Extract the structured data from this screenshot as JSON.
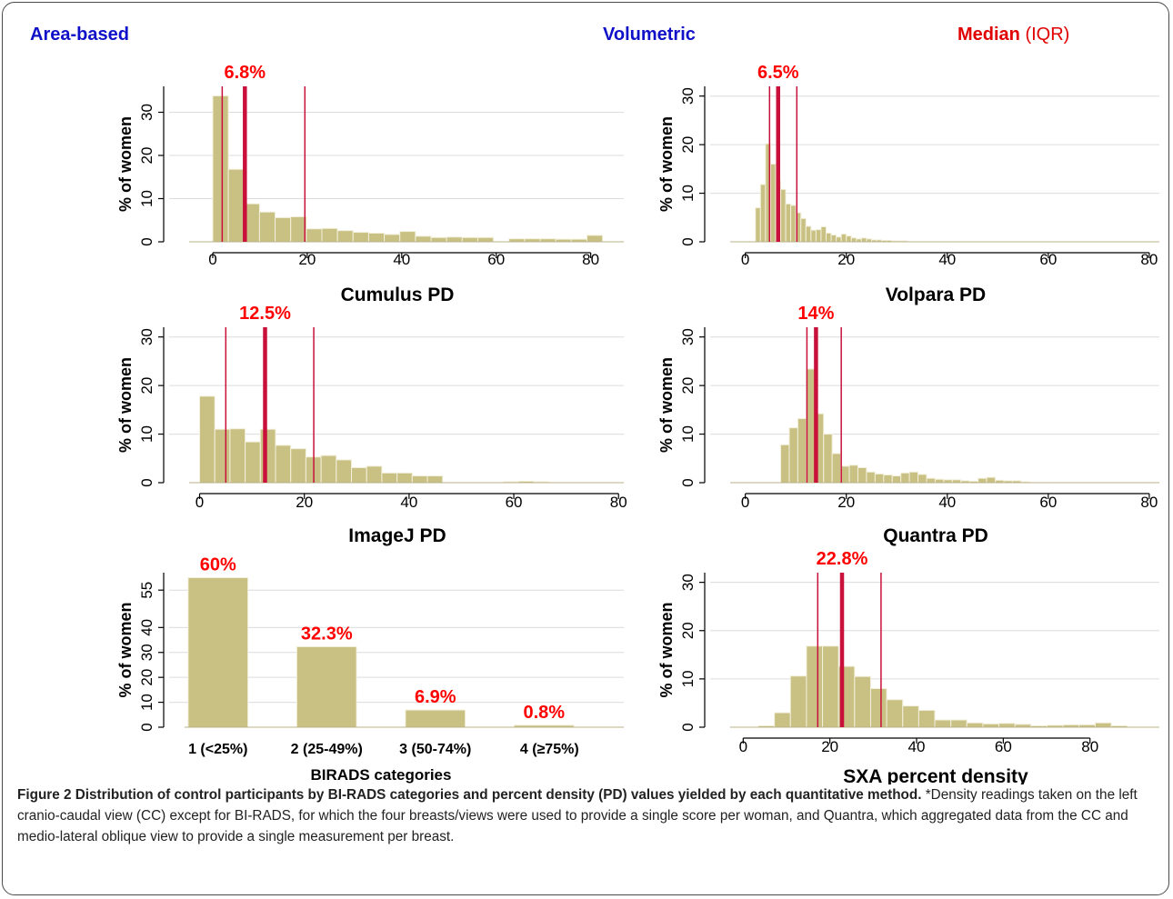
{
  "headers": {
    "area_based": "Area-based",
    "volumetric": "Volumetric",
    "median": "Median",
    "iqr": "(IQR)"
  },
  "colors": {
    "bar_fill": "#c9c184",
    "bar_stroke": "#f3f0dc",
    "median_line": "#c8103a",
    "label_red": "#ff0000",
    "area_header": "#1010c8"
  },
  "caption": {
    "title": "Figure 2 Distribution of control participants by BI-RADS categories and percent density (PD) values yielded by each quantitative method.",
    "body": " *Density readings taken on the left cranio-caudal view (CC) except for BI-RADS, for which the four breasts/views were used to provide a single score per woman, and Quantra, which aggregated data from the CC and medio-lateral oblique view to provide a single measurement per breast."
  },
  "chart_data": [
    {
      "id": "cumulus",
      "type": "bar",
      "subtype": "histogram",
      "xlabel": "Cumulus PD",
      "ylabel": "% of women",
      "xlim": [
        -5,
        87
      ],
      "ylim": [
        0,
        36
      ],
      "xticks": [
        0,
        20,
        40,
        60,
        80
      ],
      "yticks": [
        0,
        10,
        20,
        30
      ],
      "bin_width": 3.3,
      "bin_start": 0,
      "values": [
        33.8,
        16.8,
        8.8,
        6.9,
        5.6,
        5.8,
        3.0,
        3.1,
        2.6,
        2.2,
        2.0,
        1.7,
        2.4,
        1.3,
        1.0,
        1.1,
        1.0,
        1.0,
        0,
        0.7,
        0.7,
        0.7,
        0.6,
        0.6,
        1.5,
        0
      ],
      "median": 6.8,
      "iqr": [
        2.0,
        19.5
      ],
      "median_label": "6.8%"
    },
    {
      "id": "volpara",
      "type": "bar",
      "subtype": "histogram",
      "xlabel": "Volpara PD",
      "ylabel": "% of women",
      "xlim": [
        -3,
        82
      ],
      "ylim": [
        0,
        32
      ],
      "xticks": [
        0,
        20,
        40,
        60,
        80
      ],
      "yticks": [
        0,
        10,
        20,
        30
      ],
      "bin_width": 1,
      "bin_start": 2,
      "values": [
        7.0,
        11.8,
        20.2,
        16.0,
        12.5,
        10.8,
        7.8,
        7.5,
        6.0,
        4.8,
        3.2,
        2.4,
        2.5,
        3.1,
        1.8,
        1.4,
        1.0,
        1.6,
        1.2,
        0.8,
        0.6,
        0.8,
        0.6,
        0.4,
        0.4,
        0.3,
        0.3,
        0.2,
        0.2,
        0.2
      ],
      "median": 6.5,
      "iqr": [
        4.8,
        10.2
      ],
      "median_label": "6.5%"
    },
    {
      "id": "imagej",
      "type": "bar",
      "subtype": "histogram",
      "xlabel": "ImageJ PD",
      "ylabel": "% of women",
      "xlim": [
        -2,
        81
      ],
      "ylim": [
        0,
        32
      ],
      "xticks": [
        0,
        20,
        40,
        60,
        80
      ],
      "yticks": [
        0,
        10,
        20,
        30
      ],
      "bin_width": 2.9,
      "bin_start": 0,
      "values": [
        17.8,
        11.0,
        11.1,
        8.4,
        11.0,
        7.7,
        7.0,
        5.3,
        5.6,
        4.7,
        3.1,
        3.4,
        2.0,
        2.0,
        1.4,
        1.4,
        0,
        0,
        0,
        0,
        0.2,
        0.3,
        0.2
      ],
      "median": 12.5,
      "iqr": [
        5.0,
        21.8
      ],
      "median_label": "12.5%"
    },
    {
      "id": "quantra",
      "type": "bar",
      "subtype": "histogram",
      "xlabel": "Quantra PD",
      "ylabel": "% of women",
      "xlim": [
        -3,
        82
      ],
      "ylim": [
        0,
        32
      ],
      "xticks": [
        0,
        20,
        40,
        60,
        80
      ],
      "yticks": [
        0,
        10,
        20,
        30
      ],
      "bin_width": 1.7,
      "bin_start": 7,
      "values": [
        7.8,
        11.3,
        13.2,
        23.4,
        14.2,
        10.0,
        6.0,
        3.4,
        3.6,
        3.1,
        2.2,
        1.8,
        1.6,
        1.4,
        2.0,
        2.2,
        1.7,
        0.9,
        0.7,
        0.6,
        0.6,
        0.4,
        0.3,
        0.9,
        1.1,
        0.5,
        0.4,
        0.4,
        0.2
      ],
      "median": 14,
      "iqr": [
        12.2,
        19.0
      ],
      "median_label": "14%"
    },
    {
      "id": "birads",
      "type": "bar",
      "categories": [
        "1  (<25%)",
        "2 (25-49%)",
        "3 (50-74%)",
        "4 (≥75%)"
      ],
      "values": [
        60,
        32.3,
        6.9,
        0.8
      ],
      "data_labels": [
        "60%",
        "32.3%",
        "6.9%",
        "0.8%"
      ],
      "xlabel": "BIRADS categories",
      "ylabel": "% of women",
      "ylim": [
        0,
        62
      ],
      "yticks": [
        0,
        10,
        20,
        30,
        40,
        55
      ]
    },
    {
      "id": "sxa",
      "type": "bar",
      "subtype": "histogram",
      "xlabel": "SXA percent density",
      "ylabel": "% of women",
      "xlim": [
        -3,
        96
      ],
      "ylim": [
        0,
        32
      ],
      "xticks": [
        0,
        20,
        40,
        60,
        80
      ],
      "yticks": [
        0,
        10,
        20,
        30
      ],
      "bin_width": 3.7,
      "bin_start": 3.5,
      "values": [
        0.3,
        3.0,
        10.6,
        16.8,
        16.8,
        12.6,
        10.5,
        8.0,
        5.7,
        4.4,
        3.5,
        1.5,
        1.5,
        0.9,
        0.7,
        0.8,
        0.6,
        0.3,
        0.4,
        0.5,
        0.5,
        0.9,
        0.3
      ],
      "median": 22.8,
      "iqr": [
        17.2,
        31.8
      ],
      "median_label": "22.8%"
    }
  ]
}
